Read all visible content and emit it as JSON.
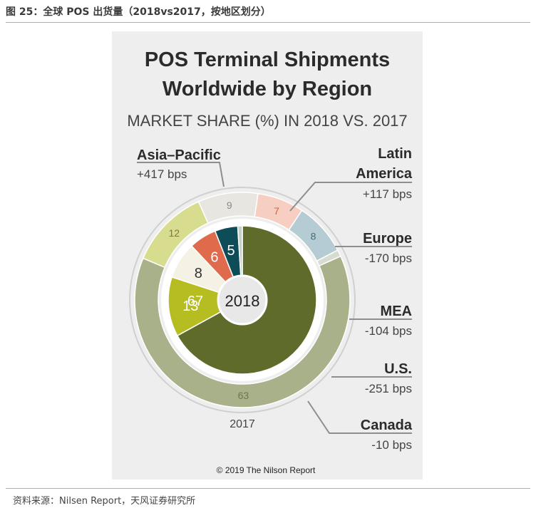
{
  "caption": "图 25：全球 POS 出货量（2018vs2017，按地区划分）",
  "source": "资料来源：Nilsen Report，天风证券研究所",
  "chart_data": {
    "type": "pie",
    "title": "POS Terminal Shipments",
    "title2": "Worldwide by Region",
    "subtitle": "MARKET SHARE (%) IN 2018 VS. 2017",
    "center_label": "2018",
    "outer_label": "2017",
    "copyright": "© 2019 The Nilson Report",
    "categories": [
      "Asia–Pacific",
      "Latin America",
      "Europe",
      "MEA",
      "U.S.",
      "Canada"
    ],
    "legend_lines": [
      [
        "Asia–Pacific"
      ],
      [
        "Latin",
        "America"
      ],
      [
        "Europe"
      ],
      [
        "MEA"
      ],
      [
        "U.S."
      ],
      [
        "Canada"
      ]
    ],
    "changes": [
      "+417 bps",
      "+117 bps",
      "-170 bps",
      "-104 bps",
      "-251 bps",
      "-10 bps"
    ],
    "series": [
      {
        "name": "2018",
        "values": [
          67,
          13,
          8,
          6,
          5,
          1
        ]
      },
      {
        "name": "2017",
        "values": [
          63,
          12,
          9,
          7,
          8,
          1
        ]
      }
    ],
    "colors_2018": [
      "#5f6b2a",
      "#b5bd21",
      "#f5f1e4",
      "#e06a4c",
      "#0e4c57",
      "#c4d0c8"
    ],
    "colors_2017": [
      "#a9b18a",
      "#d8dc8e",
      "#e7e6e0",
      "#f7cfc2",
      "#b6ccd4",
      "#d7dcd2"
    ],
    "label_colors_2018": [
      "#ffffff",
      "#ffffff",
      "#333333",
      "#ffffff",
      "#ffffff",
      ""
    ],
    "label_colors_2017": [
      "#6e7548",
      "#7c7a3a",
      "#8a8a8a",
      "#d1663c",
      "#3f6e7a",
      ""
    ]
  }
}
